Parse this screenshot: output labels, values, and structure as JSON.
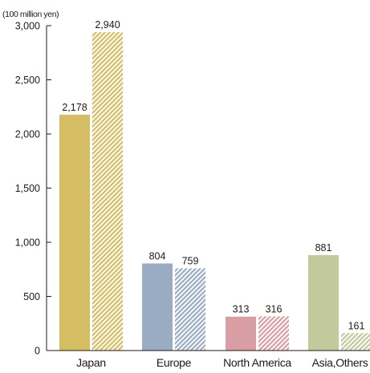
{
  "chart_data": {
    "type": "bar",
    "unit_label": "(100 million yen)",
    "categories": [
      "Japan",
      "Europe",
      "North America",
      "Asia,Others"
    ],
    "series": [
      {
        "values": [
          2178,
          804,
          313,
          881
        ],
        "style": "solid"
      },
      {
        "values": [
          2940,
          759,
          316,
          161
        ],
        "style": "hatched"
      }
    ],
    "value_labels": [
      [
        "2,178",
        "804",
        "313",
        "881"
      ],
      [
        "2,940",
        "759",
        "316",
        "161"
      ]
    ],
    "category_colors": [
      "#d4bd63",
      "#9aacc2",
      "#d99ea3",
      "#c2c99c"
    ],
    "y_ticks": [
      0,
      500,
      1000,
      1500,
      2000,
      2500,
      3000
    ],
    "y_tick_labels": [
      "0",
      "500",
      "1,000",
      "1,500",
      "2,000",
      "2,500",
      "3,000"
    ],
    "ylim": [
      0,
      3000
    ],
    "grid": false,
    "legend": "none"
  }
}
